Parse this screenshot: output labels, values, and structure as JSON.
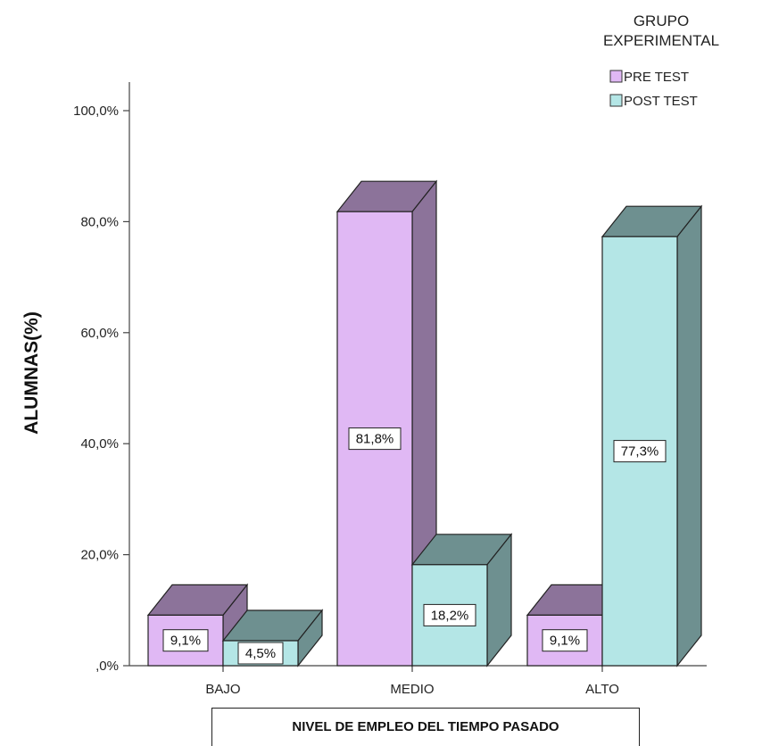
{
  "chart_data": {
    "type": "bar",
    "style": "3d-clustered",
    "categories": [
      "BAJO",
      "MEDIO",
      "ALTO"
    ],
    "series": [
      {
        "name": "PRE TEST",
        "values": [
          9.1,
          81.8,
          9.1
        ],
        "labels": [
          "9,1%",
          "81,8%",
          "9,1%"
        ],
        "color": "#E0B8F4",
        "side_color": "#8C739A"
      },
      {
        "name": "POST TEST",
        "values": [
          4.5,
          18.2,
          77.3
        ],
        "labels": [
          "4,5%",
          "18,2%",
          "77,3%"
        ],
        "color": "#B4E6E6",
        "side_color": "#6E9090"
      }
    ],
    "title": "",
    "xlabel": "NIVEL DE EMPLEO DEL TIEMPO PASADO",
    "ylabel": "ALUMNAS(%)",
    "ylim": [
      0,
      100
    ],
    "yticks": [
      0,
      20,
      40,
      60,
      80,
      100
    ],
    "ytick_labels": [
      ",0%",
      "20,0%",
      "40,0%",
      "60,0%",
      "80,0%",
      "100,0%"
    ],
    "legend": {
      "title_lines": [
        "GRUPO",
        "EXPERIMENTAL"
      ],
      "position": "top-right"
    },
    "grid": false
  }
}
